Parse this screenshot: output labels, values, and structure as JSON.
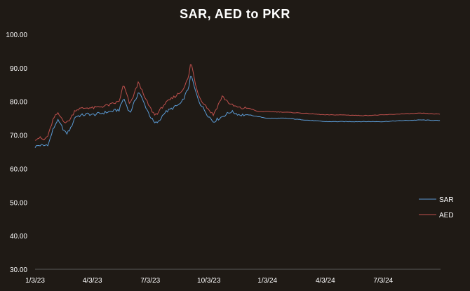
{
  "chart_data": {
    "type": "line",
    "title": "SAR, AED to PKR",
    "xlabel": "",
    "ylabel": "",
    "ylim": [
      30,
      100
    ],
    "yticks": [
      "30.00",
      "40.00",
      "50.00",
      "60.00",
      "70.00",
      "80.00",
      "90.00",
      "100.00"
    ],
    "x_start": "1/3/23",
    "x_end": "10/1/24",
    "xticks": [
      "1/3/23",
      "4/3/23",
      "7/3/23",
      "10/3/23",
      "1/3/24",
      "4/3/24",
      "7/3/24"
    ],
    "grid": false,
    "legend_position": "right",
    "series": [
      {
        "name": "SAR",
        "color": "#5b9bd5",
        "points": [
          [
            "1/3/23",
            66.5
          ],
          [
            "1/10/23",
            67.0
          ],
          [
            "1/17/23",
            66.8
          ],
          [
            "1/24/23",
            67.3
          ],
          [
            "1/31/23",
            71.5
          ],
          [
            "2/7/23",
            74.5
          ],
          [
            "2/14/23",
            72.5
          ],
          [
            "2/21/23",
            70.3
          ],
          [
            "2/28/23",
            72.0
          ],
          [
            "3/7/23",
            75.5
          ],
          [
            "3/14/23",
            75.8
          ],
          [
            "3/21/23",
            76.0
          ],
          [
            "3/28/23",
            76.3
          ],
          [
            "4/3/23",
            76.0
          ],
          [
            "4/17/23",
            76.5
          ],
          [
            "5/1/23",
            77.0
          ],
          [
            "5/15/23",
            77.5
          ],
          [
            "5/22/23",
            81.0
          ],
          [
            "6/1/23",
            76.5
          ],
          [
            "6/15/23",
            83.0
          ],
          [
            "6/22/23",
            80.0
          ],
          [
            "7/3/23",
            75.5
          ],
          [
            "7/10/23",
            73.5
          ],
          [
            "7/17/23",
            74.0
          ],
          [
            "7/24/23",
            76.5
          ],
          [
            "8/7/23",
            78.0
          ],
          [
            "8/21/23",
            79.5
          ],
          [
            "9/1/23",
            84.0
          ],
          [
            "9/5/23",
            88.0
          ],
          [
            "9/12/23",
            83.0
          ],
          [
            "9/19/23",
            79.5
          ],
          [
            "10/1/23",
            76.0
          ],
          [
            "10/10/23",
            74.0
          ],
          [
            "10/24/23",
            75.5
          ],
          [
            "11/7/23",
            77.0
          ],
          [
            "11/21/23",
            76.0
          ],
          [
            "12/5/23",
            76.0
          ],
          [
            "12/19/23",
            75.5
          ],
          [
            "1/3/24",
            75.0
          ],
          [
            "2/1/24",
            75.0
          ],
          [
            "3/1/24",
            74.5
          ],
          [
            "4/3/24",
            74.0
          ],
          [
            "5/1/24",
            74.0
          ],
          [
            "6/1/24",
            74.0
          ],
          [
            "7/3/24",
            74.0
          ],
          [
            "8/1/24",
            74.3
          ],
          [
            "9/1/24",
            74.5
          ],
          [
            "10/1/24",
            74.3
          ]
        ]
      },
      {
        "name": "AED",
        "color": "#c0504d",
        "points": [
          [
            "1/3/23",
            68.8
          ],
          [
            "1/10/23",
            69.2
          ],
          [
            "1/17/23",
            68.5
          ],
          [
            "1/24/23",
            70.0
          ],
          [
            "1/31/23",
            74.5
          ],
          [
            "2/7/23",
            76.5
          ],
          [
            "2/14/23",
            75.0
          ],
          [
            "2/21/23",
            73.5
          ],
          [
            "2/28/23",
            75.0
          ],
          [
            "3/7/23",
            77.5
          ],
          [
            "3/14/23",
            77.8
          ],
          [
            "3/21/23",
            78.0
          ],
          [
            "3/28/23",
            78.2
          ],
          [
            "4/3/23",
            78.0
          ],
          [
            "4/17/23",
            78.5
          ],
          [
            "5/1/23",
            79.0
          ],
          [
            "5/15/23",
            80.0
          ],
          [
            "5/22/23",
            85.0
          ],
          [
            "6/1/23",
            79.0
          ],
          [
            "6/15/23",
            86.0
          ],
          [
            "6/22/23",
            82.0
          ],
          [
            "7/3/23",
            78.0
          ],
          [
            "7/10/23",
            76.0
          ],
          [
            "7/17/23",
            77.0
          ],
          [
            "7/24/23",
            79.0
          ],
          [
            "8/7/23",
            81.0
          ],
          [
            "8/21/23",
            83.0
          ],
          [
            "9/1/23",
            87.0
          ],
          [
            "9/5/23",
            92.0
          ],
          [
            "9/12/23",
            85.0
          ],
          [
            "9/19/23",
            81.0
          ],
          [
            "10/1/23",
            78.0
          ],
          [
            "10/10/23",
            76.0
          ],
          [
            "10/24/23",
            81.5
          ],
          [
            "11/7/23",
            79.0
          ],
          [
            "11/21/23",
            78.0
          ],
          [
            "12/5/23",
            78.0
          ],
          [
            "12/19/23",
            77.0
          ],
          [
            "1/3/24",
            77.0
          ],
          [
            "2/1/24",
            76.8
          ],
          [
            "3/1/24",
            76.5
          ],
          [
            "4/3/24",
            76.0
          ],
          [
            "5/1/24",
            76.0
          ],
          [
            "6/1/24",
            75.8
          ],
          [
            "7/3/24",
            76.0
          ],
          [
            "8/1/24",
            76.3
          ],
          [
            "9/1/24",
            76.5
          ],
          [
            "10/1/24",
            76.2
          ]
        ]
      }
    ]
  }
}
